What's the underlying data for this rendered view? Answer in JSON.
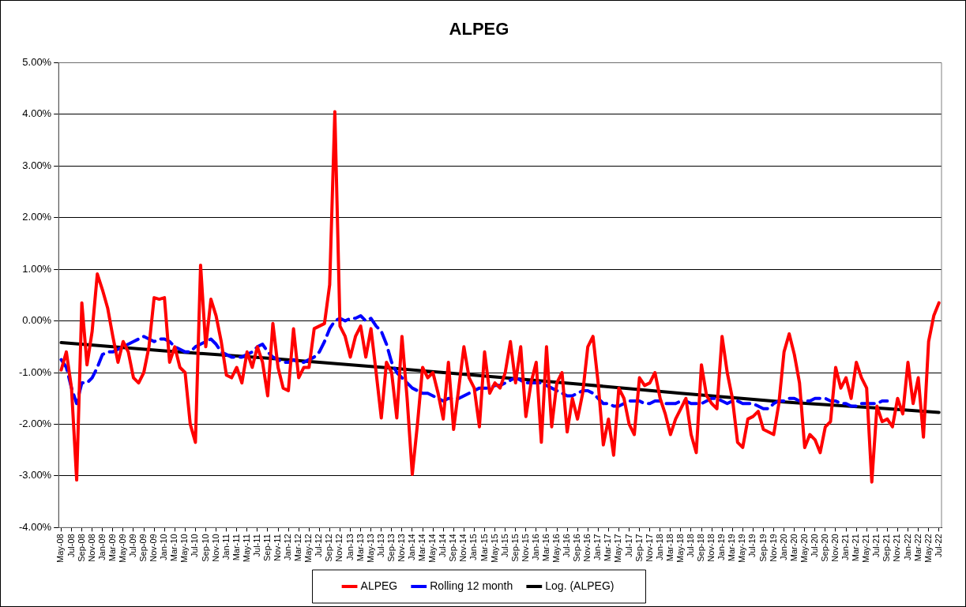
{
  "chart_data": {
    "type": "line",
    "title": "ALPEG",
    "categories": [
      "May-08",
      null,
      "Jul-08",
      null,
      "Sep-08",
      null,
      "Nov-08",
      null,
      "Jan-09",
      null,
      "Mar-09",
      null,
      "May-09",
      null,
      "Jul-09",
      null,
      "Sep-09",
      null,
      "Nov-09",
      null,
      "Jan-10",
      null,
      "Mar-10",
      null,
      "May-10",
      null,
      "Jul-10",
      null,
      "Sep-10",
      null,
      "Nov-10",
      null,
      "Jan-11",
      null,
      "Mar-11",
      null,
      "May-11",
      null,
      "Jul-11",
      null,
      "Sep-11",
      null,
      "Nov-11",
      null,
      "Jan-12",
      null,
      "Mar-12",
      null,
      "May-12",
      null,
      "Jul-12",
      null,
      "Sep-12",
      null,
      "Nov-12",
      null,
      "Jan-13",
      null,
      "Mar-13",
      null,
      "May-13",
      null,
      "Jul-13",
      null,
      "Sep-13",
      null,
      "Nov-13",
      null,
      "Jan-14",
      null,
      "Mar-14",
      null,
      "May-14",
      null,
      "Jul-14",
      null,
      "Sep-14",
      null,
      "Nov-14",
      null,
      "Jan-15",
      null,
      "Mar-15",
      null,
      "May-15",
      null,
      "Jul-15",
      null,
      "Sep-15",
      null,
      "Nov-15",
      null,
      "Jan-16",
      null,
      "Mar-16",
      null,
      "May-16",
      null,
      "Jul-16",
      null,
      "Sep-16",
      null,
      "Nov-16",
      null,
      "Jan-17",
      null,
      "Mar-17",
      null,
      "May-17",
      null,
      "Jul-17",
      null,
      "Sep-17",
      null,
      "Nov-17",
      null,
      "Jan-18",
      null,
      "Mar-18",
      null,
      "May-18",
      null,
      "Jul-18",
      null,
      "Sep-18",
      null,
      "Nov-18",
      null,
      "Jan-19",
      null,
      "Mar-19",
      null,
      "May-19",
      null,
      "Jul-19",
      null,
      "Sep-19",
      null,
      "Nov-19",
      null,
      "Jan-20",
      null,
      "Mar-20",
      null,
      "May-20",
      null,
      "Jul-20",
      null,
      "Sep-20",
      null,
      "Nov-20",
      null,
      "Jan-21",
      null,
      "Mar-21",
      null,
      "May-21",
      null,
      "Jul-21",
      null,
      "Sep-21",
      null,
      "Nov-21",
      null,
      "Jan-22",
      null,
      "Mar-22",
      null,
      "May-22",
      null,
      "Jul-22"
    ],
    "series": [
      {
        "name": "ALPEG",
        "color": "#ff0000",
        "line_style": "solid",
        "values": [
          -0.95,
          -0.6,
          -1.3,
          -3.08,
          0.35,
          -0.85,
          -0.2,
          0.91,
          0.6,
          0.25,
          -0.3,
          -0.8,
          -0.4,
          -0.6,
          -1.1,
          -1.2,
          -1.0,
          -0.5,
          0.45,
          0.42,
          0.45,
          -0.8,
          -0.5,
          -0.9,
          -1.0,
          -2.0,
          -2.35,
          1.08,
          -0.5,
          0.42,
          0.1,
          -0.4,
          -1.05,
          -1.1,
          -0.9,
          -1.2,
          -0.6,
          -0.9,
          -0.5,
          -0.8,
          -1.45,
          -0.05,
          -0.9,
          -1.3,
          -1.35,
          -0.15,
          -1.1,
          -0.9,
          -0.9,
          -0.15,
          -0.1,
          -0.05,
          0.7,
          4.05,
          -0.1,
          -0.3,
          -0.7,
          -0.3,
          -0.1,
          -0.7,
          -0.15,
          -1.0,
          -1.88,
          -0.8,
          -1.0,
          -1.88,
          -0.3,
          -1.5,
          -2.97,
          -2.0,
          -0.9,
          -1.1,
          -1.0,
          -1.4,
          -1.9,
          -0.8,
          -2.1,
          -1.3,
          -0.5,
          -1.1,
          -1.3,
          -2.05,
          -0.6,
          -1.4,
          -1.2,
          -1.3,
          -1.0,
          -0.4,
          -1.2,
          -0.5,
          -1.85,
          -1.2,
          -0.8,
          -2.35,
          -0.5,
          -2.05,
          -1.2,
          -1.0,
          -2.15,
          -1.5,
          -1.9,
          -1.4,
          -0.5,
          -0.3,
          -1.2,
          -2.4,
          -1.9,
          -2.6,
          -1.3,
          -1.5,
          -2.0,
          -2.2,
          -1.1,
          -1.25,
          -1.2,
          -1.0,
          -1.5,
          -1.8,
          -2.2,
          -1.9,
          -1.7,
          -1.5,
          -2.2,
          -2.55,
          -0.85,
          -1.45,
          -1.6,
          -1.7,
          -0.3,
          -1.0,
          -1.5,
          -2.35,
          -2.45,
          -1.9,
          -1.85,
          -1.75,
          -2.1,
          -2.15,
          -2.2,
          -1.6,
          -0.6,
          -0.25,
          -0.65,
          -1.2,
          -2.45,
          -2.2,
          -2.3,
          -2.55,
          -2.05,
          -1.95,
          -0.9,
          -1.3,
          -1.1,
          -1.5,
          -0.8,
          -1.1,
          -1.3,
          -3.12,
          -1.65,
          -1.95,
          -1.9,
          -2.05,
          -1.5,
          -1.8,
          -0.8,
          -1.6,
          -1.1,
          -2.25,
          -0.4,
          0.1,
          0.35
        ]
      },
      {
        "name": "Rolling 12 month",
        "color": "#0000ff",
        "line_style": "dashed",
        "values": [
          -0.75,
          -0.9,
          -1.3,
          -1.6,
          -1.2,
          -1.2,
          -1.1,
          -0.9,
          -0.65,
          -0.6,
          -0.6,
          -0.55,
          -0.5,
          -0.45,
          -0.4,
          -0.35,
          -0.3,
          -0.35,
          -0.4,
          -0.35,
          -0.35,
          -0.4,
          -0.5,
          -0.55,
          -0.6,
          -0.6,
          -0.5,
          -0.45,
          -0.4,
          -0.35,
          -0.45,
          -0.6,
          -0.65,
          -0.7,
          -0.7,
          -0.7,
          -0.65,
          -0.6,
          -0.5,
          -0.45,
          -0.6,
          -0.7,
          -0.75,
          -0.8,
          -0.8,
          -0.75,
          -0.8,
          -0.8,
          -0.75,
          -0.7,
          -0.6,
          -0.4,
          -0.15,
          0.0,
          0.05,
          0.0,
          0.05,
          0.05,
          0.1,
          0.0,
          0.05,
          -0.1,
          -0.2,
          -0.45,
          -0.8,
          -1.0,
          -1.1,
          -1.2,
          -1.3,
          -1.35,
          -1.4,
          -1.4,
          -1.45,
          -1.5,
          -1.55,
          -1.5,
          -1.5,
          -1.5,
          -1.45,
          -1.4,
          -1.35,
          -1.3,
          -1.3,
          -1.3,
          -1.25,
          -1.25,
          -1.2,
          -1.15,
          -1.1,
          -1.15,
          -1.2,
          -1.2,
          -1.2,
          -1.2,
          -1.25,
          -1.3,
          -1.35,
          -1.4,
          -1.45,
          -1.45,
          -1.4,
          -1.35,
          -1.35,
          -1.4,
          -1.5,
          -1.6,
          -1.6,
          -1.65,
          -1.65,
          -1.6,
          -1.55,
          -1.55,
          -1.55,
          -1.6,
          -1.6,
          -1.55,
          -1.55,
          -1.6,
          -1.6,
          -1.6,
          -1.55,
          -1.55,
          -1.6,
          -1.6,
          -1.6,
          -1.55,
          -1.5,
          -1.5,
          -1.55,
          -1.6,
          -1.55,
          -1.55,
          -1.6,
          -1.6,
          -1.6,
          -1.65,
          -1.7,
          -1.7,
          -1.6,
          -1.55,
          -1.55,
          -1.5,
          -1.5,
          -1.55,
          -1.55,
          -1.55,
          -1.5,
          -1.5,
          -1.5,
          -1.55,
          -1.55,
          -1.6,
          -1.6,
          -1.65,
          -1.65,
          -1.6,
          -1.6,
          -1.6,
          -1.6,
          -1.55,
          -1.55,
          null,
          null,
          null,
          null,
          null,
          null,
          null,
          null,
          null,
          null
        ]
      },
      {
        "name": "Log. (ALPEG)",
        "color": "#000000",
        "line_style": "solid",
        "x": [
          "May-08",
          "Jan-10",
          "Sep-11",
          "May-13",
          "Jan-15",
          "Sep-16",
          "May-18",
          "Jan-20",
          "Sep-21",
          "Jul-22"
        ],
        "values": [
          -0.42,
          -0.58,
          -0.72,
          -0.88,
          -1.05,
          -1.22,
          -1.4,
          -1.57,
          -1.7,
          -1.77
        ]
      }
    ],
    "ylim": [
      -4,
      5
    ],
    "yticks": [
      {
        "value": 5,
        "label": "5.00%"
      },
      {
        "value": 4,
        "label": "4.00%"
      },
      {
        "value": 3,
        "label": "3.00%"
      },
      {
        "value": 2,
        "label": "2.00%"
      },
      {
        "value": 1,
        "label": "1.00%"
      },
      {
        "value": 0,
        "label": "0.00%"
      },
      {
        "value": -1,
        "label": "-1.00%"
      },
      {
        "value": -2,
        "label": "-2.00%"
      },
      {
        "value": -3,
        "label": "-3.00%"
      },
      {
        "value": -4,
        "label": "-4.00%"
      }
    ],
    "grid": "y",
    "legend": "bottom"
  }
}
